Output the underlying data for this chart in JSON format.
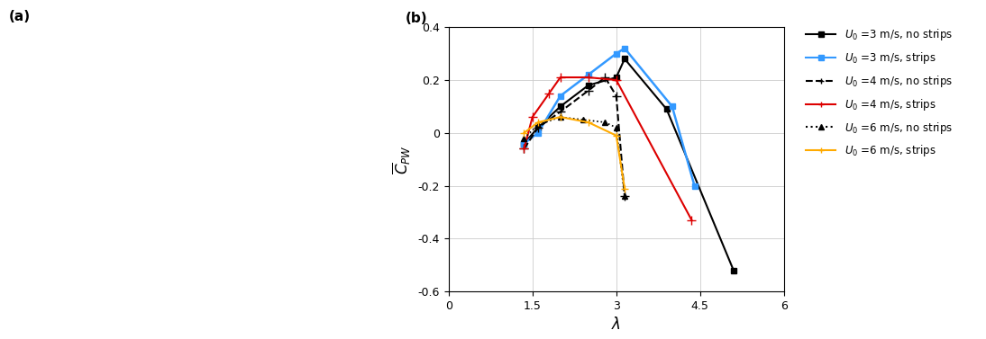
{
  "title_b": "(b)",
  "title_a": "(a)",
  "xlabel": "$\\lambda$",
  "ylabel": "$\\overline{C}_{PW}$",
  "xlim": [
    0,
    6
  ],
  "ylim": [
    -0.6,
    0.4
  ],
  "xticks": [
    0,
    1.5,
    3,
    4.5,
    6
  ],
  "xticklabels": [
    "0",
    "1.5",
    "3",
    "4.5",
    "6"
  ],
  "yticks": [
    -0.6,
    -0.4,
    -0.2,
    0,
    0.2,
    0.4
  ],
  "series": [
    {
      "label": "$U_0$ =3 m/s, no strips",
      "color": "#000000",
      "linestyle": "-",
      "marker": "s",
      "markersize": 4,
      "linewidth": 1.5,
      "x": [
        1.35,
        1.6,
        2.0,
        2.5,
        3.0,
        3.15,
        3.9,
        5.1
      ],
      "y": [
        -0.04,
        0.02,
        0.1,
        0.18,
        0.21,
        0.28,
        0.09,
        -0.52
      ]
    },
    {
      "label": "$U_0$ =3 m/s, strips",
      "color": "#3399ff",
      "linestyle": "-",
      "marker": "s",
      "markersize": 4,
      "linewidth": 1.8,
      "x": [
        1.35,
        1.6,
        2.0,
        2.5,
        3.0,
        3.15,
        4.0,
        4.4
      ],
      "y": [
        -0.04,
        0.0,
        0.14,
        0.22,
        0.3,
        0.32,
        0.1,
        -0.2
      ]
    },
    {
      "label": "$U_0$ =4 m/s, no strips",
      "color": "#000000",
      "linestyle": "--",
      "marker": "+",
      "markersize": 7,
      "linewidth": 1.5,
      "x": [
        1.35,
        1.6,
        2.0,
        2.5,
        2.8,
        3.0,
        3.15
      ],
      "y": [
        -0.06,
        0.02,
        0.08,
        0.16,
        0.21,
        0.14,
        -0.24
      ]
    },
    {
      "label": "$U_0$ =4 m/s, strips",
      "color": "#dd0000",
      "linestyle": "-",
      "marker": "+",
      "markersize": 7,
      "linewidth": 1.5,
      "x": [
        1.35,
        1.5,
        1.8,
        2.0,
        2.5,
        3.0,
        4.35
      ],
      "y": [
        -0.06,
        0.06,
        0.15,
        0.21,
        0.21,
        0.2,
        -0.33
      ]
    },
    {
      "label": "$U_0$ =6 m/s, no strips",
      "color": "#000000",
      "linestyle": ":",
      "marker": "^",
      "markersize": 4,
      "linewidth": 1.2,
      "x": [
        1.35,
        1.6,
        2.0,
        2.4,
        2.8,
        3.0,
        3.15
      ],
      "y": [
        -0.02,
        0.03,
        0.06,
        0.05,
        0.04,
        0.02,
        -0.24
      ]
    },
    {
      "label": "$U_0$ =6 m/s, strips",
      "color": "#ffaa00",
      "linestyle": "-",
      "marker": "+",
      "markersize": 6,
      "linewidth": 1.5,
      "x": [
        1.35,
        1.6,
        2.0,
        2.5,
        3.0,
        3.15
      ],
      "y": [
        0.0,
        0.04,
        0.06,
        0.04,
        -0.01,
        -0.21
      ]
    }
  ],
  "legend_styles": [
    {
      "linestyle": "-",
      "marker": "s",
      "color": "#000000",
      "label": "$U_0$ =3 m/s, no strips"
    },
    {
      "linestyle": "-",
      "marker": "s",
      "color": "#3399ff",
      "label": "$U_0$ =3 m/s, strips"
    },
    {
      "linestyle": "--",
      "marker": "+",
      "color": "#000000",
      "label": "$U_0$ =4 m/s, no strips"
    },
    {
      "linestyle": "-",
      "marker": "+",
      "color": "#dd0000",
      "label": "$U_0$ =4 m/s, strips"
    },
    {
      "linestyle": ":",
      "marker": "^",
      "color": "#000000",
      "label": "$U_0$ =6 m/s, no strips"
    },
    {
      "linestyle": "-",
      "marker": "+",
      "color": "#ffaa00",
      "label": "$U_0$ =6 m/s, strips"
    }
  ]
}
